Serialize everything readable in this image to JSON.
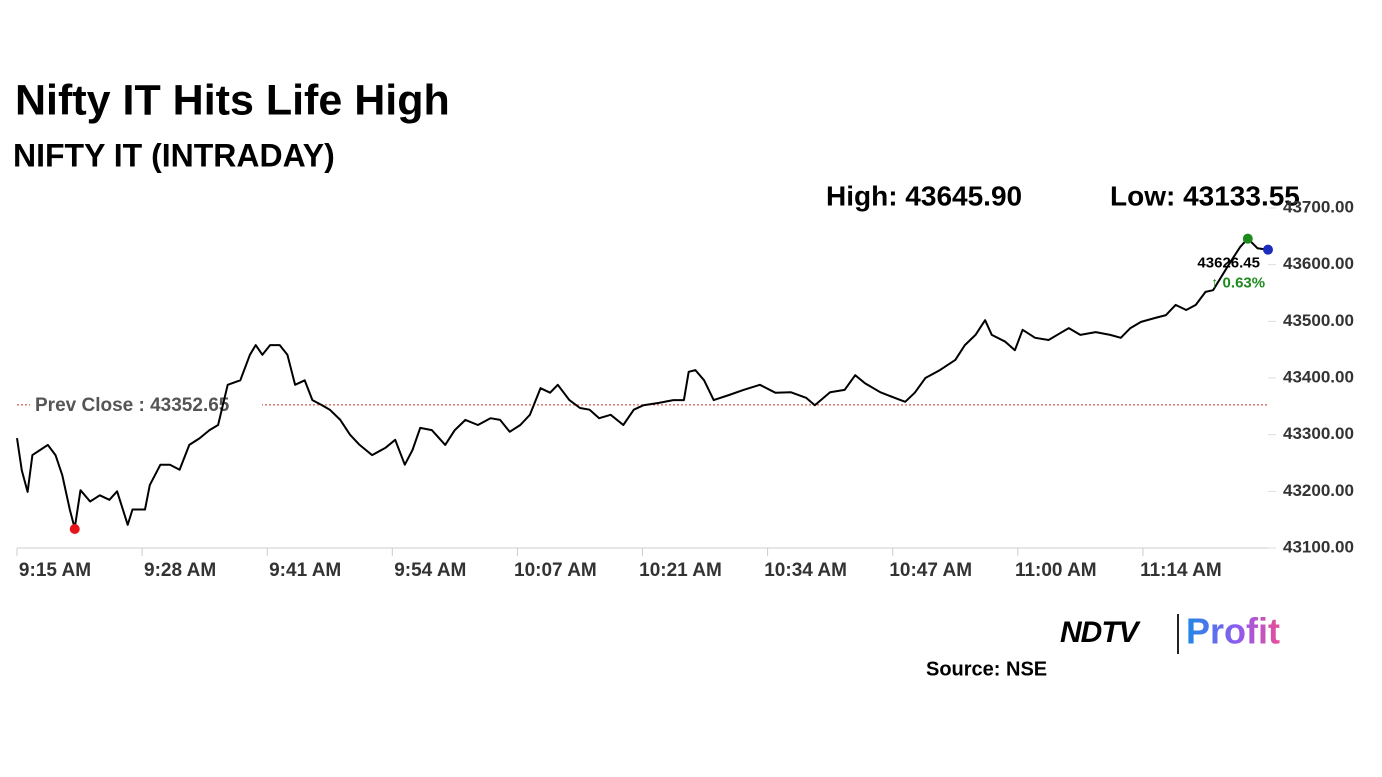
{
  "chart_data": {
    "type": "line",
    "title": "Nifty IT Hits Life High",
    "subtitle": "NIFTY IT (INTRADAY)",
    "series": [
      {
        "name": "NIFTY IT",
        "color": "#000000",
        "x": [
          0,
          0.5,
          1.1,
          1.6,
          2.4,
          3.2,
          4,
          4.7,
          5.5,
          6,
          6.6,
          7.6,
          8.6,
          9.6,
          10.4,
          11.5,
          12,
          13.3,
          13.8,
          14.9,
          15.9,
          16.9,
          17.9,
          19,
          20,
          20.9,
          21.9,
          23.2,
          24.2,
          24.8,
          25.5,
          26.3,
          27.3,
          28.1,
          28.9,
          29.9,
          30.7,
          31.7,
          32.5,
          33.6,
          34.6,
          35.6,
          36.9,
          38.3,
          39.3,
          40.3,
          41.1,
          41.9,
          43.1,
          44.5,
          45.5,
          46.6,
          47.9,
          49.2,
          50.2,
          51.2,
          52.3,
          53.3,
          54.4,
          55.4,
          56.2,
          57.4,
          58.5,
          59.5,
          60.5,
          61.7,
          63,
          64.1,
          65.1,
          66.7,
          68.2,
          69.3,
          69.8,
          70.5,
          71.4,
          72.4,
          74,
          75.5,
          77.2,
          78.8,
          80.4,
          82,
          82.9,
          84.5,
          86,
          87.1,
          88.1,
          89.7,
          91.2,
          92.3,
          93.3,
          94.4,
          95.9,
          97.5,
          98.5,
          99.6,
          100.6,
          101.3,
          102.7,
          103.7,
          104.5,
          105.8,
          107.2,
          108.4,
          109.3,
          110.5,
          112.1,
          113.6,
          114.7,
          115.7,
          116.8,
          118.3,
          119.4,
          120.4,
          121.5,
          122.5,
          123.5,
          124.3,
          126.1,
          127.1,
          127.9,
          128.9,
          130
        ],
        "values": [
          43294,
          43237,
          43199,
          43264,
          43273,
          43282,
          43264,
          43229,
          43167,
          43135,
          43202,
          43182,
          43193,
          43185,
          43200,
          43141,
          43168,
          43168,
          43211,
          43247,
          43247,
          43238,
          43282,
          43294,
          43308,
          43317,
          43388,
          43396,
          43441,
          43458,
          43441,
          43458,
          43458,
          43441,
          43388,
          43396,
          43361,
          43352,
          43344,
          43326,
          43300,
          43282,
          43264,
          43277,
          43291,
          43247,
          43273,
          43312,
          43308,
          43282,
          43308,
          43326,
          43317,
          43329,
          43326,
          43305,
          43317,
          43335,
          43382,
          43374,
          43388,
          43361,
          43347,
          43344,
          43329,
          43335,
          43317,
          43344,
          43352,
          43356,
          43361,
          43361,
          43411,
          43414,
          43396,
          43361,
          43370,
          43379,
          43388,
          43374,
          43375,
          43365,
          43352,
          43375,
          43379,
          43405,
          43391,
          43375,
          43365,
          43358,
          43374,
          43400,
          43414,
          43432,
          43458,
          43476,
          43502,
          43476,
          43464,
          43449,
          43485,
          43471,
          43467,
          43479,
          43488,
          43476,
          43481,
          43476,
          43471,
          43488,
          43499,
          43506,
          43511,
          43529,
          43520,
          43529,
          43552,
          43555,
          43605,
          43631,
          43646,
          43629,
          43626.45
        ]
      }
    ],
    "xlim": [
      0,
      130
    ],
    "xticks": [
      {
        "value": 0,
        "label": "9:15 AM"
      },
      {
        "value": 13,
        "label": "9:28 AM"
      },
      {
        "value": 26,
        "label": "9:41 AM"
      },
      {
        "value": 39,
        "label": "9:54 AM"
      },
      {
        "value": 52,
        "label": "10:07 AM"
      },
      {
        "value": 65,
        "label": "10:21 AM"
      },
      {
        "value": 78,
        "label": "10:34 AM"
      },
      {
        "value": 91,
        "label": "10:47 AM"
      },
      {
        "value": 104,
        "label": "11:00 AM"
      },
      {
        "value": 117,
        "label": "11:14 AM"
      }
    ],
    "ylim": [
      43100,
      43700
    ],
    "yticks": [
      {
        "value": 43700,
        "label": "43700.00"
      },
      {
        "value": 43600,
        "label": "43600.00"
      },
      {
        "value": 43500,
        "label": "43500.00"
      },
      {
        "value": 43400,
        "label": "43400.00"
      },
      {
        "value": 43300,
        "label": "43300.00"
      },
      {
        "value": 43200,
        "label": "43200.00"
      },
      {
        "value": 43100,
        "label": "43100.00"
      }
    ],
    "high": {
      "label": "High: 43645.90",
      "value": 43645.9,
      "x": 127.9,
      "color": "#1e8a1e"
    },
    "low": {
      "label": "Low: 43133.55",
      "value": 43133.55,
      "x": 6,
      "color": "#e8141c"
    },
    "prev_close": {
      "label": "Prev Close : 43352.65",
      "value": 43352.65,
      "color": "#c0392b"
    },
    "last": {
      "label": "43626.45",
      "value": 43626.45,
      "x": 130,
      "change_label": "↑ 0.63%",
      "color": "#1a2bbf",
      "change_color": "#1e8a1e"
    },
    "brand": {
      "name": "NDTV",
      "product": "Profit"
    },
    "source": "Source: NSE"
  }
}
